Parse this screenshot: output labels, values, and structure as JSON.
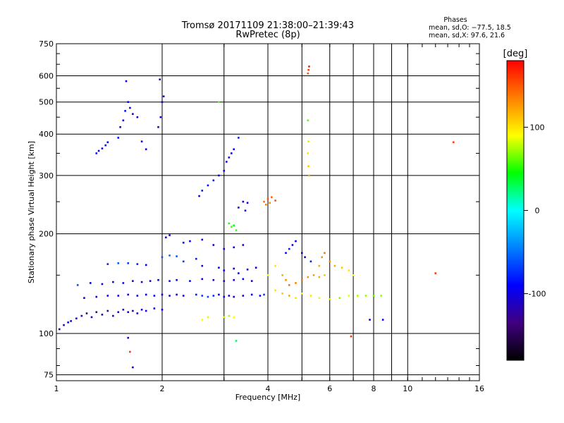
{
  "chart_data": {
    "type": "scatter",
    "title": "Tromsø 20171109 21:38:00–21:39:43",
    "subtitle": "RwPretec (8p)",
    "xlabel": "Frequency [MHz]",
    "ylabel": "Stationary phase Virtual Height [km]",
    "x_scale": "log",
    "y_scale": "log",
    "xlim": [
      1,
      16
    ],
    "ylim": [
      72,
      750
    ],
    "x_ticks": [
      1,
      2,
      4,
      6,
      8,
      10,
      16
    ],
    "x_minor_ticks": [
      3,
      5,
      7,
      9
    ],
    "y_ticks": [
      75,
      100,
      200,
      300,
      400,
      500,
      600,
      750
    ],
    "grid": true,
    "stats_panel": {
      "heading": "Phases",
      "line1": "mean, sd,O: −77.5, 18.5",
      "line2": "mean, sd,X:  97.6, 21.6"
    },
    "colorbar": {
      "label": "[deg]",
      "range": [
        -180,
        180
      ],
      "ticks": [
        100,
        0,
        -100
      ],
      "colors": [
        "#ff0000",
        "#ff8000",
        "#ffff00",
        "#00ff00",
        "#00ffff",
        "#0080ff",
        "#0000ff",
        "#400080",
        "#000000"
      ]
    },
    "series": [
      {
        "points": [
          [
            1.02,
            103,
            -110
          ],
          [
            1.05,
            106,
            -100
          ],
          [
            1.08,
            108,
            -95
          ],
          [
            1.1,
            109,
            -105
          ],
          [
            1.14,
            111,
            -112
          ],
          [
            1.18,
            113,
            -110
          ],
          [
            1.22,
            115,
            -120
          ],
          [
            1.26,
            112,
            -115
          ],
          [
            1.3,
            116,
            -125
          ],
          [
            1.35,
            114,
            -118
          ],
          [
            1.4,
            117,
            -122
          ],
          [
            1.45,
            113,
            -110
          ],
          [
            1.5,
            116,
            -105
          ],
          [
            1.55,
            118,
            -115
          ],
          [
            1.6,
            116,
            -108
          ],
          [
            1.65,
            117,
            -112
          ],
          [
            1.7,
            115,
            -100
          ],
          [
            1.75,
            118,
            -110
          ],
          [
            1.8,
            117,
            -105
          ],
          [
            1.9,
            119,
            -95
          ],
          [
            2.0,
            118,
            -100
          ],
          [
            1.2,
            128,
            -110
          ],
          [
            1.3,
            129,
            -100
          ],
          [
            1.4,
            130,
            -95
          ],
          [
            1.5,
            130,
            -105
          ],
          [
            1.6,
            131,
            -110
          ],
          [
            1.7,
            130,
            -100
          ],
          [
            1.8,
            131,
            -90
          ],
          [
            1.9,
            130,
            -95
          ],
          [
            2.0,
            131,
            -100
          ],
          [
            2.1,
            130,
            -110
          ],
          [
            2.2,
            131,
            -105
          ],
          [
            2.3,
            130,
            -95
          ],
          [
            2.5,
            131,
            -80
          ],
          [
            2.6,
            130,
            -70
          ],
          [
            2.7,
            129,
            -65
          ],
          [
            2.8,
            130,
            -75
          ],
          [
            2.9,
            131,
            -90
          ],
          [
            3.0,
            129,
            -100
          ],
          [
            3.1,
            130,
            -110
          ],
          [
            3.2,
            129,
            -115
          ],
          [
            3.4,
            130,
            -105
          ],
          [
            3.6,
            131,
            -95
          ],
          [
            3.8,
            130,
            -100
          ],
          [
            3.9,
            131,
            -70
          ],
          [
            1.15,
            140,
            -60
          ],
          [
            1.25,
            142,
            -90
          ],
          [
            1.35,
            141,
            -100
          ],
          [
            1.45,
            143,
            -105
          ],
          [
            1.55,
            142,
            -95
          ],
          [
            1.65,
            144,
            -100
          ],
          [
            1.75,
            143,
            -110
          ],
          [
            1.85,
            144,
            -100
          ],
          [
            1.95,
            145,
            -90
          ],
          [
            2.1,
            144,
            -85
          ],
          [
            2.2,
            145,
            -100
          ],
          [
            2.4,
            144,
            -90
          ],
          [
            2.6,
            146,
            -95
          ],
          [
            2.8,
            145,
            -100
          ],
          [
            3.0,
            144,
            -110
          ],
          [
            3.2,
            145,
            -100
          ],
          [
            3.4,
            146,
            -90
          ],
          [
            3.6,
            144,
            -110
          ],
          [
            1.4,
            162,
            -80
          ],
          [
            1.5,
            163,
            -60
          ],
          [
            1.6,
            163,
            -70
          ],
          [
            1.7,
            162,
            -80
          ],
          [
            1.8,
            161,
            -90
          ],
          [
            2.0,
            170,
            -60
          ],
          [
            2.1,
            172,
            -50
          ],
          [
            2.2,
            171,
            -60
          ],
          [
            2.3,
            165,
            -70
          ],
          [
            2.5,
            168,
            -80
          ],
          [
            2.6,
            160,
            -100
          ],
          [
            2.9,
            158,
            -90
          ],
          [
            3.0,
            155,
            -100
          ],
          [
            3.2,
            157,
            -110
          ],
          [
            3.3,
            152,
            -105
          ],
          [
            3.5,
            156,
            -100
          ],
          [
            3.7,
            158,
            -110
          ],
          [
            2.05,
            195,
            -110
          ],
          [
            2.1,
            198,
            -100
          ],
          [
            2.3,
            188,
            -90
          ],
          [
            2.4,
            190,
            -95
          ],
          [
            2.6,
            192,
            -100
          ],
          [
            2.8,
            185,
            -105
          ],
          [
            3.0,
            180,
            -110
          ],
          [
            3.2,
            182,
            -100
          ],
          [
            3.4,
            185,
            -105
          ],
          [
            1.3,
            350,
            -90
          ],
          [
            1.32,
            356,
            -100
          ],
          [
            1.35,
            362,
            -95
          ],
          [
            1.38,
            370,
            -100
          ],
          [
            1.4,
            378,
            -90
          ],
          [
            1.5,
            390,
            -95
          ],
          [
            1.52,
            420,
            -100
          ],
          [
            1.55,
            440,
            -90
          ],
          [
            1.57,
            470,
            -85
          ],
          [
            1.6,
            500,
            -95
          ],
          [
            1.62,
            480,
            -100
          ],
          [
            1.65,
            460,
            -110
          ],
          [
            1.7,
            450,
            -90
          ],
          [
            1.75,
            380,
            -95
          ],
          [
            1.8,
            360,
            -100
          ],
          [
            1.95,
            420,
            -110
          ],
          [
            1.98,
            450,
            -100
          ],
          [
            2.0,
            500,
            -105
          ],
          [
            2.02,
            520,
            -95
          ],
          [
            1.97,
            585,
            -110
          ],
          [
            1.58,
            578,
            -100
          ],
          [
            2.55,
            260,
            -90
          ],
          [
            2.6,
            270,
            -80
          ],
          [
            2.7,
            280,
            -90
          ],
          [
            2.8,
            290,
            -85
          ],
          [
            2.9,
            300,
            -95
          ],
          [
            3.0,
            310,
            -100
          ],
          [
            3.05,
            330,
            -105
          ],
          [
            3.1,
            340,
            -110
          ],
          [
            3.15,
            350,
            -100
          ],
          [
            3.2,
            360,
            -95
          ],
          [
            3.3,
            240,
            -100
          ],
          [
            3.4,
            250,
            -110
          ],
          [
            3.5,
            248,
            -105
          ],
          [
            3.45,
            235,
            -95
          ],
          [
            3.1,
            215,
            50
          ],
          [
            3.15,
            210,
            60
          ],
          [
            3.2,
            212,
            40
          ],
          [
            3.25,
            205,
            55
          ],
          [
            3.9,
            250,
            140
          ],
          [
            4.0,
            255,
            150
          ],
          [
            4.05,
            248,
            130
          ],
          [
            4.1,
            258,
            145
          ],
          [
            4.2,
            252,
            150
          ],
          [
            3.95,
            245,
            135
          ],
          [
            4.0,
            150,
            90
          ],
          [
            4.2,
            160,
            100
          ],
          [
            4.4,
            150,
            120
          ],
          [
            4.5,
            145,
            130
          ],
          [
            4.6,
            140,
            140
          ],
          [
            4.8,
            142,
            135
          ],
          [
            5.0,
            145,
            140
          ],
          [
            5.2,
            148,
            130
          ],
          [
            5.4,
            150,
            125
          ],
          [
            5.6,
            148,
            120
          ],
          [
            5.8,
            150,
            110
          ],
          [
            4.2,
            135,
            100
          ],
          [
            4.4,
            132,
            110
          ],
          [
            4.6,
            130,
            120
          ],
          [
            4.8,
            128,
            100
          ],
          [
            5.0,
            132,
            90
          ],
          [
            5.3,
            130,
            100
          ],
          [
            5.6,
            128,
            95
          ],
          [
            6.0,
            127,
            80
          ],
          [
            6.4,
            128,
            70
          ],
          [
            6.8,
            130,
            85
          ],
          [
            7.2,
            130,
            75
          ],
          [
            7.6,
            130,
            70
          ],
          [
            8.0,
            130,
            60
          ],
          [
            8.4,
            130,
            70
          ],
          [
            4.5,
            175,
            -90
          ],
          [
            4.6,
            180,
            -80
          ],
          [
            4.7,
            185,
            -100
          ],
          [
            4.8,
            190,
            -95
          ],
          [
            5.0,
            175,
            -90
          ],
          [
            5.1,
            170,
            -100
          ],
          [
            5.3,
            165,
            -80
          ],
          [
            5.2,
            610,
            150
          ],
          [
            5.22,
            625,
            160
          ],
          [
            5.24,
            640,
            170
          ],
          [
            5.2,
            440,
            60
          ],
          [
            5.22,
            380,
            80
          ],
          [
            5.2,
            350,
            100
          ],
          [
            5.22,
            320,
            110
          ],
          [
            5.24,
            300,
            120
          ],
          [
            5.6,
            160,
            120
          ],
          [
            5.7,
            170,
            130
          ],
          [
            5.8,
            175,
            140
          ],
          [
            6.0,
            165,
            130
          ],
          [
            6.2,
            160,
            120
          ],
          [
            6.5,
            158,
            110
          ],
          [
            6.8,
            155,
            100
          ],
          [
            7.0,
            150,
            90
          ],
          [
            2.6,
            110,
            90
          ],
          [
            2.7,
            112,
            85
          ],
          [
            3.0,
            112,
            80
          ],
          [
            3.1,
            113,
            75
          ],
          [
            3.2,
            112,
            90
          ],
          [
            1.6,
            97,
            -110
          ],
          [
            1.62,
            88,
            160
          ],
          [
            1.65,
            79,
            -100
          ],
          [
            3.25,
            95,
            30
          ],
          [
            6.9,
            98,
            165
          ],
          [
            7.8,
            110,
            -100
          ],
          [
            8.5,
            110,
            -90
          ],
          [
            12.0,
            152,
            160
          ],
          [
            13.5,
            378,
            160
          ],
          [
            2.9,
            500,
            60
          ],
          [
            3.3,
            390,
            -80
          ]
        ]
      }
    ]
  }
}
